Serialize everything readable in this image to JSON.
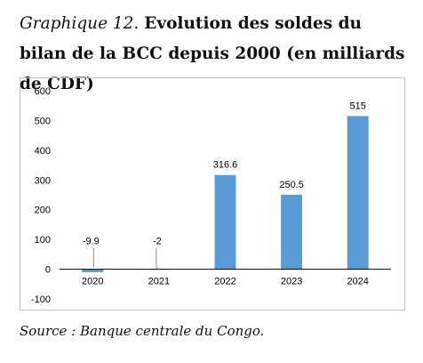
{
  "title": {
    "label": "Graphique 12.",
    "text": "Evolution des soldes du bilan de la BCC depuis 2000 (en milliards de CDF)"
  },
  "source": "Source : Banque centrale du Congo.",
  "chart_data": {
    "type": "bar",
    "categories": [
      "2020",
      "2021",
      "2022",
      "2023",
      "2024"
    ],
    "values": [
      -9.9,
      -2,
      316.6,
      250.5,
      515
    ],
    "data_labels": [
      "-9.9",
      "-2",
      "316.6",
      "250.5",
      "515"
    ],
    "ylim": [
      -100,
      600
    ],
    "yticks": [
      -100,
      0,
      100,
      200,
      300,
      400,
      500,
      600
    ],
    "grid": false,
    "legend": "none",
    "bar_color": "#5b9bd5"
  }
}
